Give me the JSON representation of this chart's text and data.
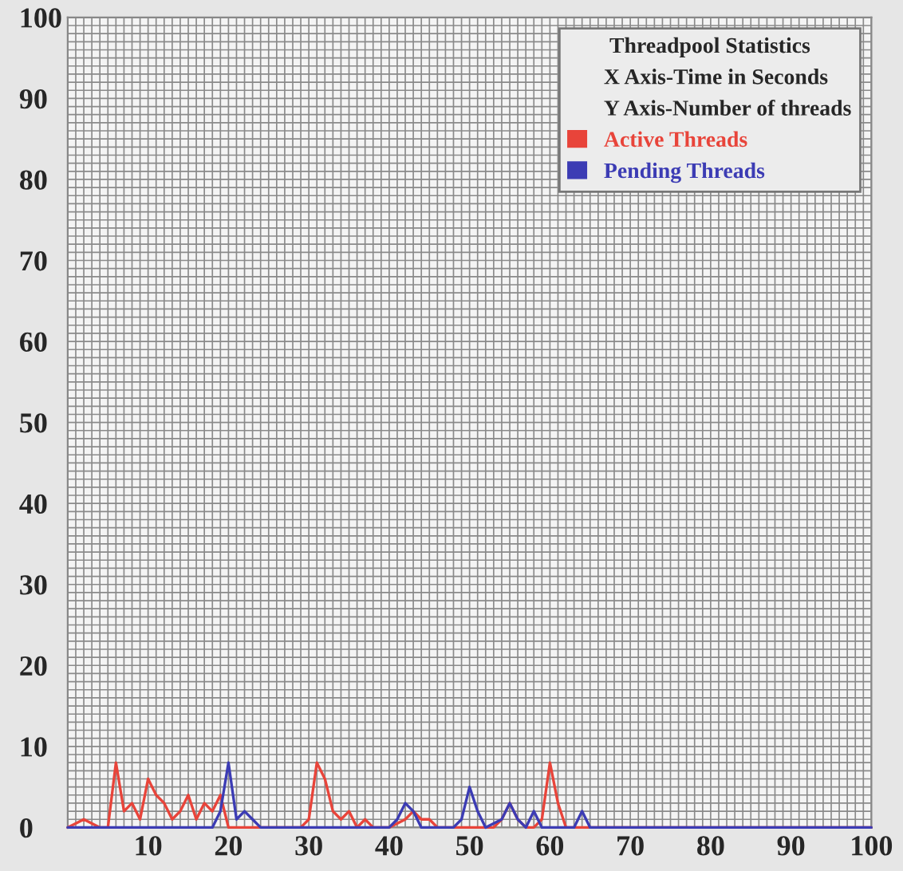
{
  "chart_data": {
    "type": "line",
    "legend_title": "Threadpool Statistics",
    "annotations": [
      "X Axis-Time in Seconds",
      "Y Axis-Number of threads"
    ],
    "series": [
      {
        "name": "Active Threads",
        "color": "#e8443a",
        "x": [
          0,
          2,
          4,
          5,
          6,
          7,
          8,
          9,
          10,
          11,
          12,
          13,
          14,
          15,
          16,
          17,
          18,
          19,
          20,
          29,
          30,
          31,
          32,
          33,
          34,
          35,
          36,
          37,
          38,
          40,
          42,
          43,
          44,
          45,
          46,
          53,
          54,
          55,
          56,
          57,
          58,
          59,
          60,
          61,
          62,
          63,
          100
        ],
        "values": [
          0,
          1,
          0,
          0,
          8,
          2,
          3,
          1,
          6,
          4,
          3,
          1,
          2,
          4,
          1,
          3,
          2,
          4,
          0,
          0,
          1,
          8,
          6,
          2,
          1,
          2,
          0,
          1,
          0,
          0,
          1,
          2,
          1,
          1,
          0,
          0,
          1,
          3,
          1,
          0,
          0,
          1,
          8,
          3,
          0,
          0,
          0
        ]
      },
      {
        "name": "Pending Threads",
        "color": "#3c3cb4",
        "x": [
          0,
          18,
          19,
          20,
          21,
          22,
          23,
          24,
          40,
          41,
          42,
          43,
          44,
          48,
          49,
          50,
          51,
          52,
          54,
          55,
          56,
          57,
          58,
          59,
          63,
          64,
          65,
          100
        ],
        "values": [
          0,
          0,
          2,
          8,
          1,
          2,
          1,
          0,
          0,
          1,
          3,
          2,
          0,
          0,
          1,
          5,
          2,
          0,
          1,
          3,
          1,
          0,
          2,
          0,
          0,
          2,
          0,
          0
        ]
      }
    ],
    "xlim": [
      0,
      100
    ],
    "xticks": [
      10,
      20,
      30,
      40,
      50,
      60,
      70,
      80,
      90,
      100
    ],
    "ylim": [
      0,
      100
    ],
    "yticks": [
      0,
      10,
      20,
      30,
      40,
      50,
      60,
      70,
      80,
      90,
      100
    ],
    "grid": true,
    "legend": "top right"
  }
}
